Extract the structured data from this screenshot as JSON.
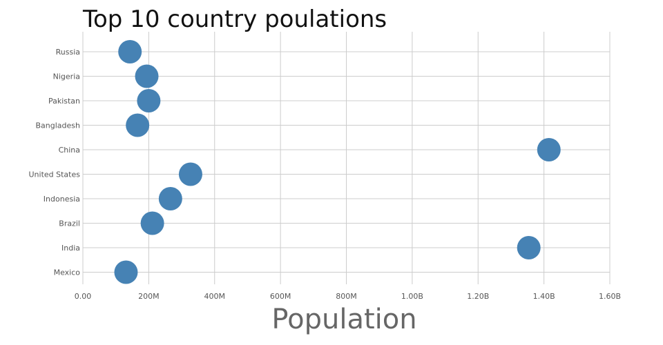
{
  "chart_data": {
    "type": "scatter",
    "title": "Top 10 country poulations",
    "xlabel": "Population",
    "ylabel": "",
    "categories": [
      "Russia",
      "Nigeria",
      "Pakistan",
      "Bangladesh",
      "China",
      "United States",
      "Indonesia",
      "Brazil",
      "India",
      "Mexico"
    ],
    "values": [
      143000000,
      194000000,
      200000000,
      166000000,
      1415000000,
      327000000,
      266000000,
      211000000,
      1354000000,
      131000000
    ],
    "xlim": [
      0,
      1600000000
    ],
    "x_ticks": [
      0,
      200000000,
      400000000,
      600000000,
      800000000,
      1000000000,
      1200000000,
      1400000000,
      1600000000
    ],
    "x_tick_labels": [
      "0.00",
      "200M",
      "400M",
      "600M",
      "800M",
      "1.00B",
      "1.20B",
      "1.40B",
      "1.60B"
    ],
    "grid": true,
    "marker_color": "#4682b4",
    "gridline_color": "#cccccc"
  }
}
